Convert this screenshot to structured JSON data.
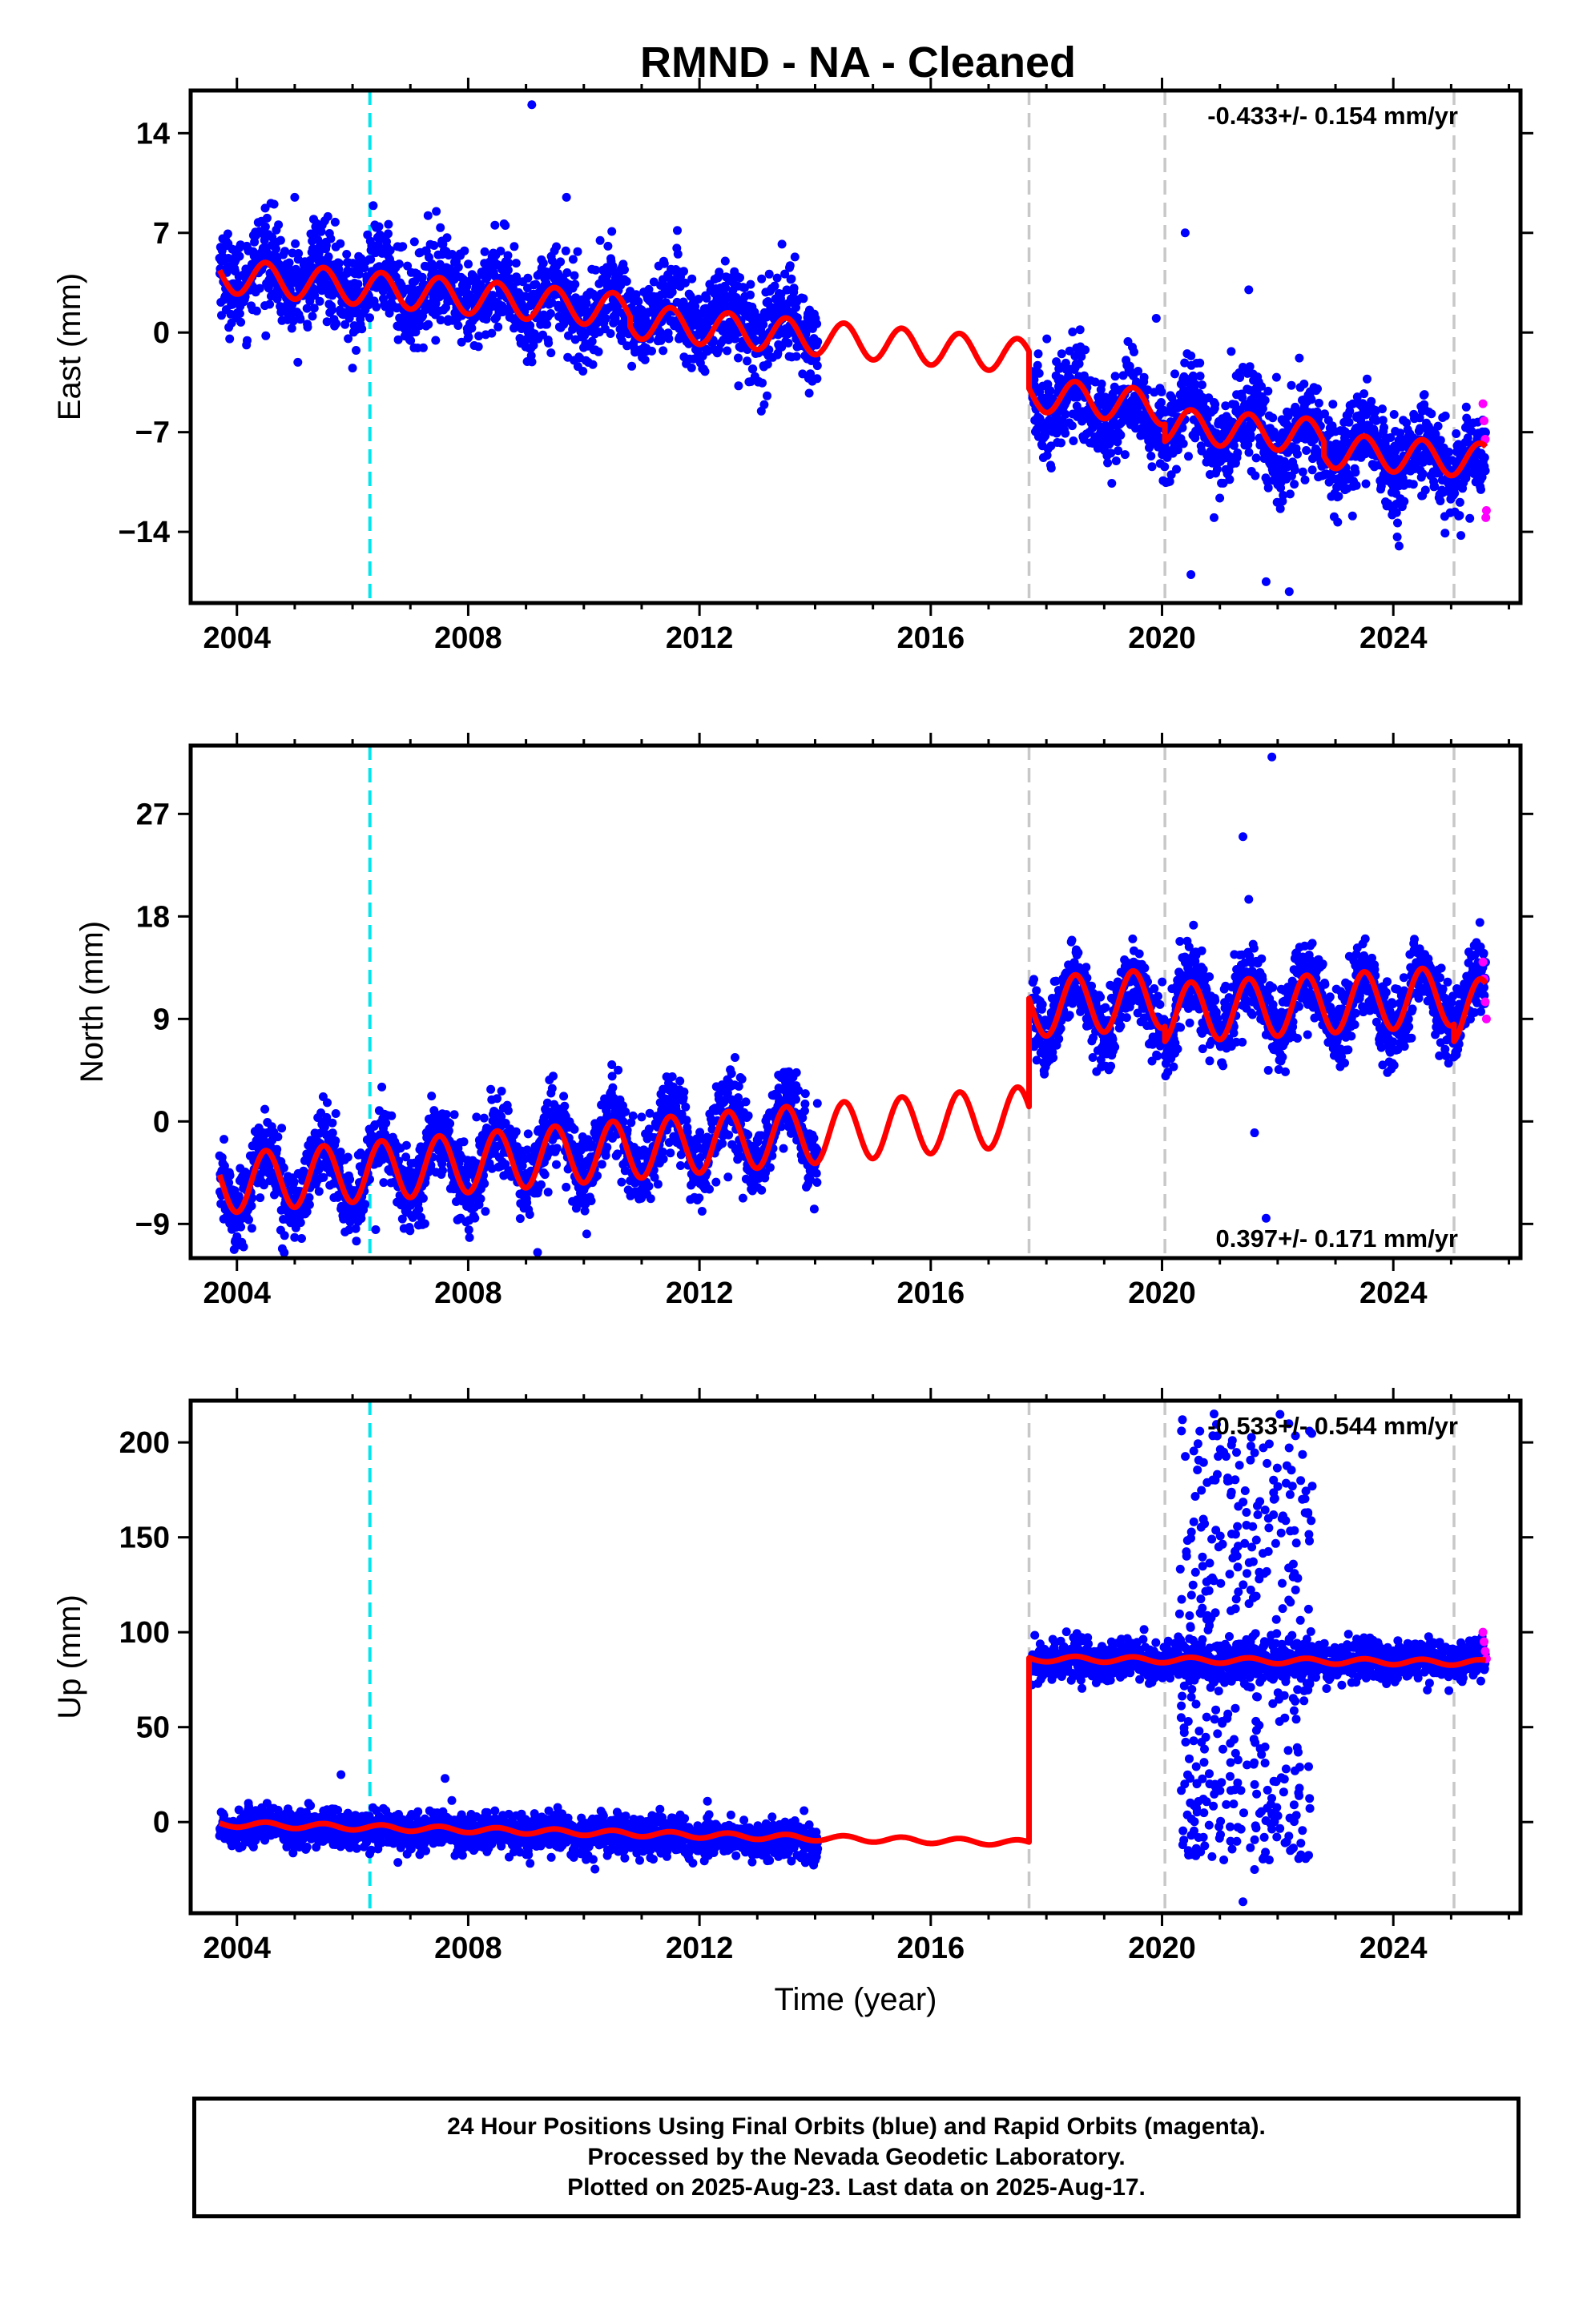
{
  "title": "RMND  - NA - Cleaned",
  "colors": {
    "final": "#0000ff",
    "rapid": "#ff00ff",
    "model": "#ff0000",
    "equipment_change": "#00e5ee",
    "offset": "#c8c8c8"
  },
  "chart_data": [
    {
      "type": "scatter",
      "name": "east",
      "ylabel": "East (mm)",
      "xlabel": "",
      "xlim": [
        2003.2,
        2026.2
      ],
      "ylim": [
        -19,
        17
      ],
      "xticks": [
        2004,
        2008,
        2012,
        2016,
        2020,
        2024
      ],
      "yticks": [
        14,
        7,
        0,
        -7,
        -14
      ],
      "rate_label": "-0.433+/- 0.154 mm/yr",
      "rate_position": "top-right",
      "dashed_lines": [
        {
          "x": 2006.3,
          "kind": "equipment_change"
        },
        {
          "x": 2017.7,
          "kind": "offset"
        },
        {
          "x": 2020.05,
          "kind": "offset"
        },
        {
          "x": 2025.05,
          "kind": "offset"
        }
      ],
      "segments": [
        {
          "x0": 2003.7,
          "x1": 2014.05,
          "mean": [
            4.5,
            0.2
          ]
        },
        {
          "x0": 2017.75,
          "x1": 2025.6,
          "mean": [
            -4.5,
            -9.5
          ]
        }
      ],
      "noise_sd": 1.6,
      "seasonal_amp": 1.2,
      "model": [
        {
          "x0": 2003.7,
          "x1": 2010.8,
          "y0": 4.0,
          "y1": 1.5
        },
        {
          "x0": 2010.8,
          "x1": 2017.7,
          "y0": 0.8,
          "y1": -1.7
        },
        {
          "x0": 2017.7,
          "x1": 2020.05,
          "y0": -4.3,
          "y1": -5.3
        },
        {
          "x0": 2020.05,
          "x1": 2022.8,
          "y0": -6.5,
          "y1": -7.3
        },
        {
          "x0": 2022.8,
          "x1": 2025.6,
          "y0": -8.3,
          "y1": -9.0
        }
      ],
      "outliers": [
        [
          2009.1,
          16.0
        ],
        [
          2009.7,
          9.5
        ],
        [
          2005.0,
          9.5
        ],
        [
          2006.0,
          -2.5
        ],
        [
          2020.4,
          7.0
        ],
        [
          2021.5,
          3.0
        ],
        [
          2020.5,
          -17.0
        ],
        [
          2021.8,
          -17.5
        ],
        [
          2022.2,
          -18.2
        ],
        [
          2024.1,
          -15.0
        ],
        [
          2020.9,
          -13.0
        ],
        [
          2019.9,
          1.0
        ]
      ],
      "rapid_points": [
        [
          2025.55,
          -5.0
        ],
        [
          2025.57,
          -6.2
        ],
        [
          2025.59,
          -7.5
        ],
        [
          2025.61,
          -12.5
        ],
        [
          2025.6,
          -13.0
        ]
      ]
    },
    {
      "type": "scatter",
      "name": "north",
      "ylabel": "North (mm)",
      "xlabel": "",
      "xlim": [
        2003.2,
        2026.2
      ],
      "ylim": [
        -12,
        33
      ],
      "xticks": [
        2004,
        2008,
        2012,
        2016,
        2020,
        2024
      ],
      "yticks": [
        27,
        18,
        9,
        0,
        -9
      ],
      "rate_label": "0.397+/- 0.171 mm/yr",
      "rate_position": "bottom-right",
      "dashed_lines": [
        {
          "x": 2006.3,
          "kind": "equipment_change"
        },
        {
          "x": 2017.7,
          "kind": "offset"
        },
        {
          "x": 2020.05,
          "kind": "offset"
        },
        {
          "x": 2025.05,
          "kind": "offset"
        }
      ],
      "segments": [
        {
          "x0": 2003.7,
          "x1": 2014.05,
          "mean": [
            -5.5,
            -0.5
          ]
        },
        {
          "x0": 2017.75,
          "x1": 2025.6,
          "mean": [
            10.0,
            10.5
          ]
        }
      ],
      "noise_sd": 1.7,
      "seasonal_amp": 2.6,
      "model": [
        {
          "x0": 2003.7,
          "x1": 2017.7,
          "y0": -5.5,
          "y1": 0.5
        },
        {
          "x0": 2017.7,
          "x1": 2020.05,
          "y0": 10.0,
          "y1": 10.8
        },
        {
          "x0": 2020.05,
          "x1": 2025.05,
          "y0": 9.5,
          "y1": 11.0
        },
        {
          "x0": 2025.05,
          "x1": 2025.6,
          "y0": 9.5,
          "y1": 10.0
        }
      ],
      "outliers": [
        [
          2021.9,
          32.0
        ],
        [
          2021.4,
          25.0
        ],
        [
          2021.5,
          19.5
        ],
        [
          2021.6,
          -1.0
        ],
        [
          2021.8,
          -8.5
        ],
        [
          2009.2,
          -11.5
        ],
        [
          2006.4,
          -9.5
        ]
      ],
      "rapid_points": [
        [
          2025.55,
          14.0
        ],
        [
          2025.57,
          12.5
        ],
        [
          2025.59,
          10.5
        ],
        [
          2025.61,
          9.0
        ]
      ]
    },
    {
      "type": "scatter",
      "name": "up",
      "ylabel": "Up (mm)",
      "xlabel": "Time (year)",
      "xlim": [
        2003.2,
        2026.2
      ],
      "ylim": [
        -48,
        222
      ],
      "xticks": [
        2004,
        2008,
        2012,
        2016,
        2020,
        2024
      ],
      "yticks": [
        200,
        150,
        100,
        50,
        0
      ],
      "rate_label": "-0.533+/- 0.544 mm/yr",
      "rate_position": "top-right",
      "dashed_lines": [
        {
          "x": 2006.3,
          "kind": "equipment_change"
        },
        {
          "x": 2017.7,
          "kind": "offset"
        },
        {
          "x": 2020.05,
          "kind": "offset"
        },
        {
          "x": 2025.05,
          "kind": "offset"
        }
      ],
      "segments": [
        {
          "x0": 2003.7,
          "x1": 2014.05,
          "mean": [
            -2.0,
            -10.0
          ]
        },
        {
          "x0": 2017.75,
          "x1": 2025.6,
          "mean": [
            85.0,
            85.0
          ]
        }
      ],
      "noise_sd": 5.0,
      "seasonal_amp": 1.5,
      "scatter_window": {
        "x0": 2020.3,
        "x1": 2022.6,
        "lo": -20,
        "hi": 215,
        "count": 420
      },
      "model": [
        {
          "x0": 2003.7,
          "x1": 2017.7,
          "y0": -1.0,
          "y1": -11.0
        },
        {
          "x0": 2017.7,
          "x1": 2025.6,
          "y0": 86.0,
          "y1": 84.0
        }
      ],
      "outliers": [
        [
          2021.4,
          -42.0
        ],
        [
          2021.6,
          -25.0
        ],
        [
          2020.9,
          215.0
        ],
        [
          2005.8,
          25.0
        ],
        [
          2007.6,
          23.0
        ]
      ],
      "rapid_points": [
        [
          2025.55,
          100.0
        ],
        [
          2025.57,
          95.0
        ],
        [
          2025.59,
          90.0
        ],
        [
          2025.61,
          86.0
        ]
      ]
    }
  ],
  "footer": {
    "line1": "24 Hour Positions Using Final Orbits (blue) and Rapid Orbits (magenta).",
    "line2": "Processed by the Nevada Geodetic Laboratory.",
    "line3": "Plotted on 2025-Aug-23. Last data on 2025-Aug-17."
  }
}
